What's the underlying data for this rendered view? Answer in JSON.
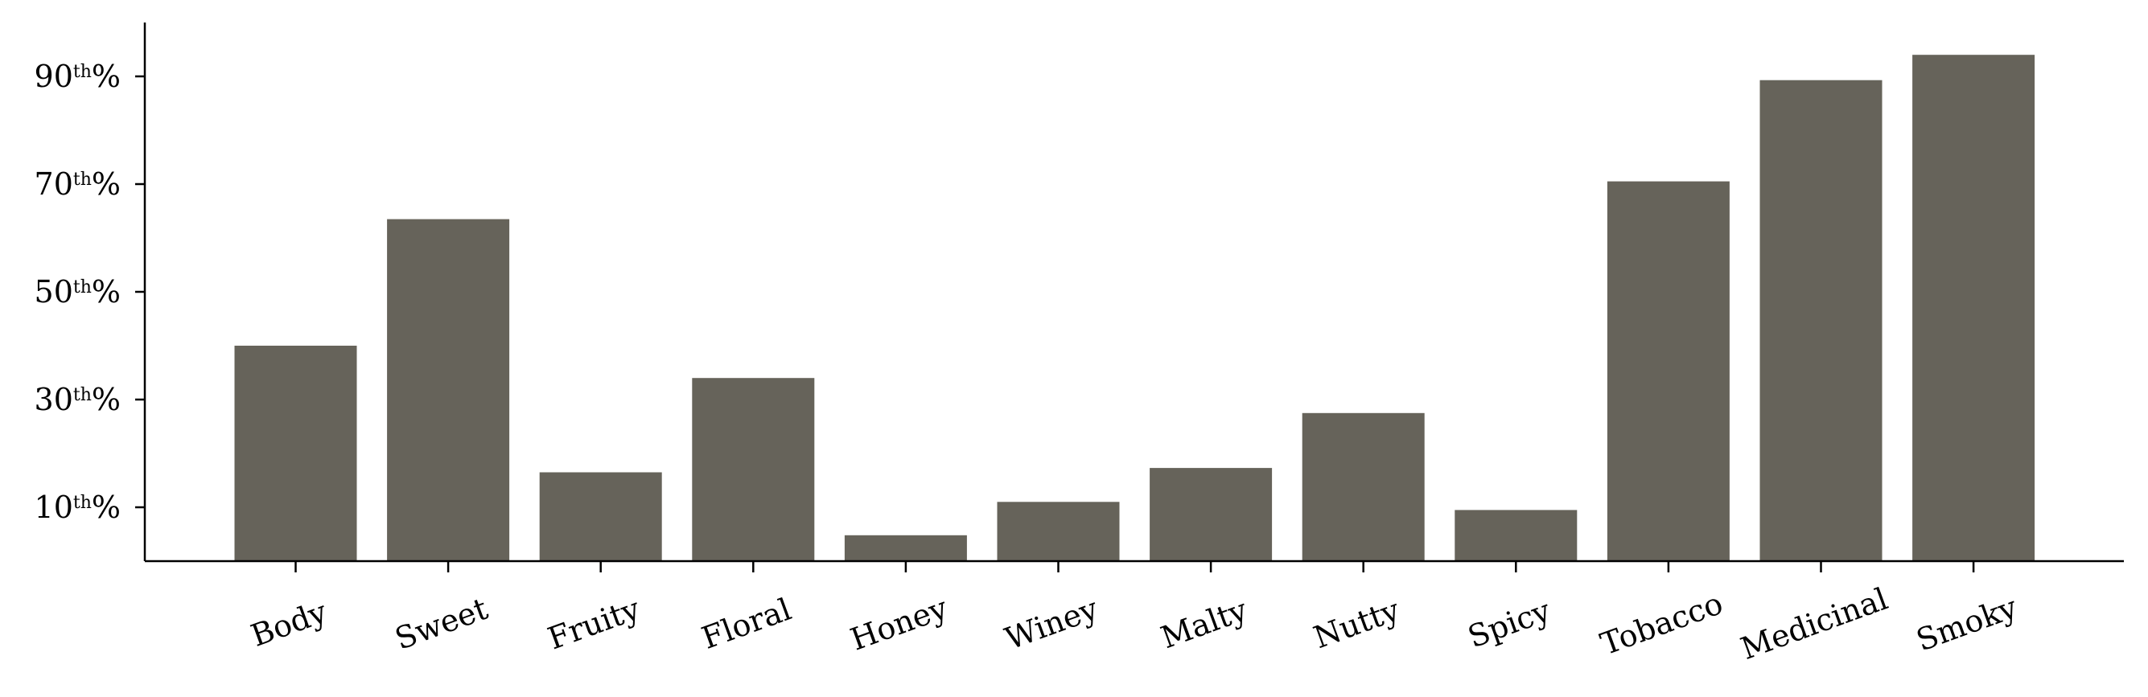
{
  "chart_data": {
    "type": "bar",
    "title": "",
    "xlabel": "",
    "ylabel": "",
    "categories": [
      "Body",
      "Sweet",
      "Fruity",
      "Floral",
      "Honey",
      "Winey",
      "Malty",
      "Nutty",
      "Spicy",
      "Tobacco",
      "Medicinal",
      "Smoky"
    ],
    "values": [
      40,
      63.5,
      16.5,
      34,
      4.8,
      11,
      17.3,
      27.5,
      9.5,
      70.5,
      89.3,
      94
    ],
    "ylim": [
      0,
      100
    ],
    "yticks": [
      {
        "value": 10,
        "num": "10",
        "sup": "th",
        "suffix": "%"
      },
      {
        "value": 30,
        "num": "30",
        "sup": "th",
        "suffix": "%"
      },
      {
        "value": 50,
        "num": "50",
        "sup": "th",
        "suffix": "%"
      },
      {
        "value": 70,
        "num": "70",
        "sup": "th",
        "suffix": "%"
      },
      {
        "value": 90,
        "num": "90",
        "sup": "th",
        "suffix": "%"
      }
    ],
    "bar_color": "#66635a",
    "grid": false,
    "legend": "none"
  }
}
